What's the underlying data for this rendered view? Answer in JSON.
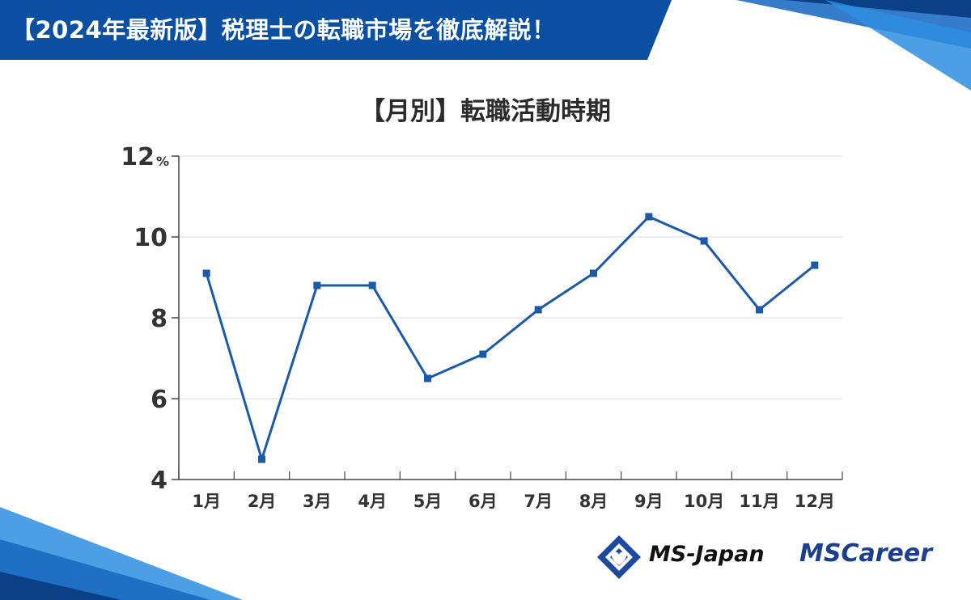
{
  "banner": {
    "title": "【2024年最新版】税理士の転職市場を徹底解説！",
    "color": "#0b4fa3"
  },
  "chart_data": {
    "type": "line",
    "title": "【月別】転職活動時期",
    "categories": [
      "1月",
      "2月",
      "3月",
      "4月",
      "5月",
      "6月",
      "7月",
      "8月",
      "9月",
      "10月",
      "11月",
      "12月"
    ],
    "series": [
      {
        "values": [
          9.1,
          4.5,
          8.8,
          8.8,
          6.5,
          7.1,
          8.2,
          9.1,
          10.5,
          9.9,
          8.2,
          9.3
        ]
      }
    ],
    "ylim": [
      4,
      12
    ],
    "yticks": [
      4,
      6,
      8,
      10,
      12
    ],
    "y_unit": "%",
    "grid": true,
    "line_color": "#1a5aa8"
  },
  "logos": {
    "msjapan": "MS-Japan",
    "mscareer": "MSCareer"
  }
}
